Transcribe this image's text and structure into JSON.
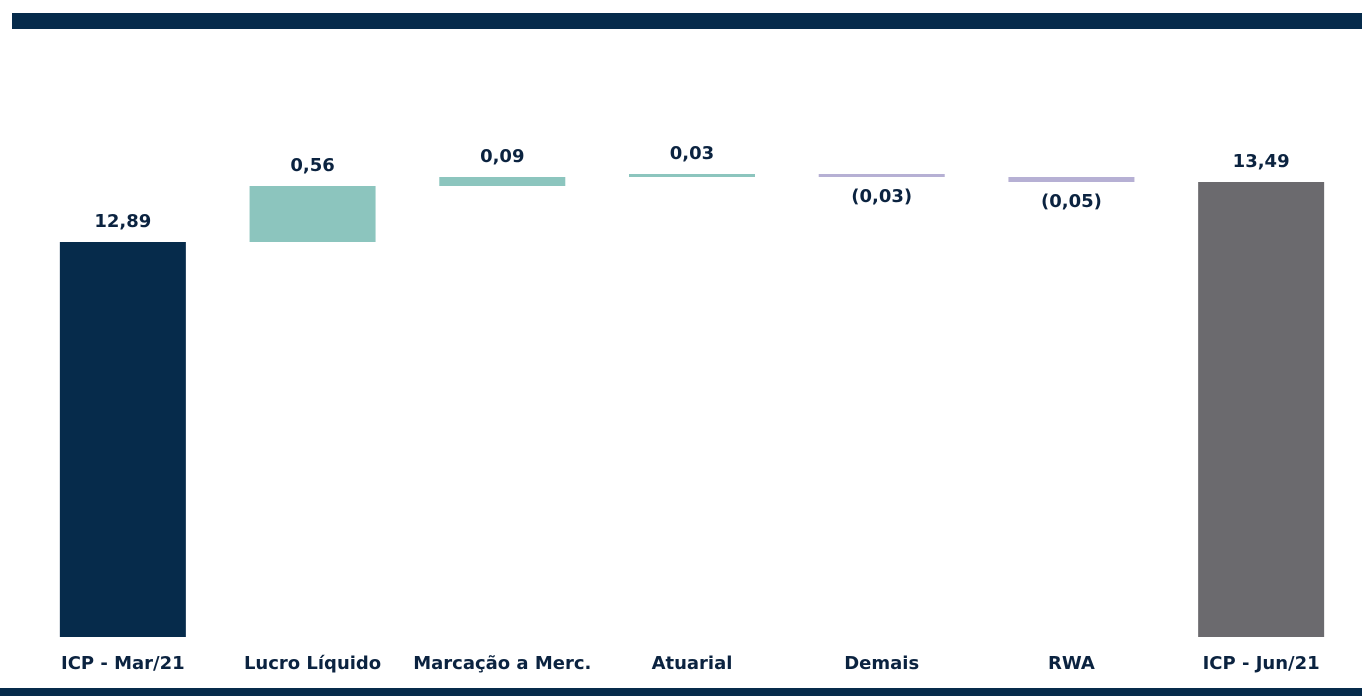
{
  "chart_data": {
    "type": "waterfall",
    "categories": [
      "ICP - Mar/21",
      "Lucro Líquido",
      "Marcação a Merc.",
      "Atuarial",
      "Demais",
      "RWA",
      "ICP - Jun/21"
    ],
    "values": [
      12.89,
      0.56,
      0.09,
      0.03,
      -0.03,
      -0.05,
      13.49
    ],
    "value_labels": [
      "12,89",
      "0,56",
      "0,09",
      "0,03",
      "(0,03)",
      "(0,05)",
      "13,49"
    ],
    "measures": [
      "absolute",
      "relative",
      "relative",
      "relative",
      "relative",
      "relative",
      "total"
    ],
    "colors": [
      "#062b4b",
      "#8cc5be",
      "#8cc5be",
      "#8cc5be",
      "#b6b0d4",
      "#b6b0d4",
      "#6b6a6e"
    ],
    "ylim": [
      8.94,
      14.31
    ]
  }
}
